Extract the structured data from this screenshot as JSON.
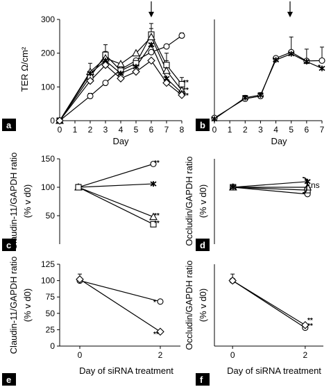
{
  "chart_data": [
    {
      "panel": "a",
      "type": "line",
      "xlabel": "Day",
      "ylabel": "TER Ω/cm²",
      "xlim": [
        0,
        8
      ],
      "ylim": [
        0,
        300
      ],
      "xticks": [
        "0",
        "1",
        "2",
        "3",
        "4",
        "5",
        "6",
        "7",
        "8"
      ],
      "yticks": [
        "0",
        "100",
        "200",
        "300"
      ],
      "arrow_x": 6,
      "series": [
        {
          "marker": "circle",
          "x": [
            0,
            2,
            3,
            4,
            5,
            6,
            7,
            8
          ],
          "y": [
            0,
            73,
            112,
            152,
            178,
            203,
            220,
            252
          ],
          "err": [
            0,
            8,
            0,
            0,
            0,
            0,
            0,
            8
          ]
        },
        {
          "marker": "square",
          "x": [
            0,
            2,
            3,
            4,
            5,
            6,
            7,
            8
          ],
          "y": [
            0,
            130,
            195,
            148,
            170,
            255,
            165,
            108
          ],
          "err": [
            0,
            15,
            30,
            0,
            0,
            18,
            35,
            20
          ]
        },
        {
          "marker": "triangle",
          "x": [
            0,
            2,
            3,
            4,
            5,
            6,
            7,
            8
          ],
          "y": [
            0,
            145,
            185,
            168,
            200,
            248,
            148,
            90
          ],
          "err": [
            0,
            25,
            20,
            0,
            0,
            40,
            30,
            10
          ]
        },
        {
          "marker": "star",
          "x": [
            0,
            2,
            3,
            4,
            5,
            6,
            7,
            8
          ],
          "y": [
            0,
            140,
            178,
            140,
            160,
            225,
            125,
            82
          ],
          "err": [
            0,
            0,
            0,
            0,
            0,
            0,
            0,
            0
          ]
        },
        {
          "marker": "diamond",
          "x": [
            0,
            2,
            3,
            4,
            5,
            6,
            7,
            8
          ],
          "y": [
            0,
            118,
            165,
            125,
            145,
            178,
            112,
            76
          ],
          "err": [
            0,
            0,
            0,
            0,
            0,
            0,
            0,
            0
          ]
        }
      ],
      "annotations": [
        "**",
        "**",
        "**"
      ]
    },
    {
      "panel": "b",
      "type": "line",
      "xlabel": "Day",
      "ylabel": "",
      "xlim": [
        0,
        7
      ],
      "ylim": [
        0,
        300
      ],
      "xticks": [
        "0",
        "1",
        "2",
        "3",
        "4",
        "5",
        "6",
        "7"
      ],
      "yticks": [],
      "arrow_x": 5,
      "series": [
        {
          "marker": "circle",
          "x": [
            0,
            2,
            3,
            4,
            5,
            6,
            7
          ],
          "y": [
            8,
            65,
            73,
            185,
            203,
            177,
            178
          ],
          "err": [
            0,
            10,
            10,
            0,
            45,
            35,
            40
          ]
        },
        {
          "marker": "star",
          "x": [
            0,
            2,
            3,
            4,
            5,
            6,
            7
          ],
          "y": [
            5,
            68,
            76,
            180,
            198,
            175,
            155
          ],
          "err": [
            0,
            0,
            0,
            0,
            0,
            0,
            0
          ]
        }
      ],
      "annotations": [
        "*"
      ]
    },
    {
      "panel": "c",
      "type": "line",
      "xlabel": "",
      "ylabel": "Claudin-11/GAPDH ratio (% v d0)",
      "xlim": [
        -0.5,
        2.5
      ],
      "ylim": [
        0,
        150
      ],
      "xticks": [],
      "yticks": [
        "50",
        "100",
        "150"
      ],
      "series": [
        {
          "marker": "circle",
          "x": [
            0,
            2
          ],
          "y": [
            100,
            141
          ],
          "err": [
            5,
            0
          ]
        },
        {
          "marker": "star",
          "x": [
            0,
            2
          ],
          "y": [
            100,
            106
          ],
          "err": [
            0,
            0
          ]
        },
        {
          "marker": "triangle",
          "x": [
            0,
            2
          ],
          "y": [
            100,
            48
          ],
          "err": [
            0,
            0
          ]
        },
        {
          "marker": "square",
          "x": [
            0,
            2
          ],
          "y": [
            100,
            35
          ],
          "err": [
            0,
            0
          ]
        }
      ],
      "annotations": [
        "**",
        "**",
        "**"
      ]
    },
    {
      "panel": "d",
      "type": "line",
      "xlabel": "",
      "ylabel": "Occludin/GAPDH ratio (% v d0)",
      "xlim": [
        -0.5,
        2.5
      ],
      "ylim": [
        0,
        150
      ],
      "xticks": [],
      "yticks": [],
      "series": [
        {
          "marker": "circle",
          "x": [
            0,
            2
          ],
          "y": [
            100,
            88
          ],
          "err": [
            5,
            0
          ]
        },
        {
          "marker": "square",
          "x": [
            0,
            2
          ],
          "y": [
            100,
            95
          ],
          "err": [
            0,
            0
          ]
        },
        {
          "marker": "triangle",
          "x": [
            0,
            2
          ],
          "y": [
            100,
            100
          ],
          "err": [
            0,
            0
          ]
        },
        {
          "marker": "star",
          "x": [
            0,
            2
          ],
          "y": [
            100,
            110
          ],
          "err": [
            0,
            0
          ]
        }
      ],
      "annotations": [
        "ns"
      ]
    },
    {
      "panel": "e",
      "type": "line",
      "xlabel": "Day of siRNA treatment",
      "ylabel": "Claudin-11/GAPDH ratio (% v d0)",
      "xlim": [
        -0.5,
        2.5
      ],
      "ylim": [
        0,
        125
      ],
      "xticks": [
        "0",
        "2"
      ],
      "yticks": [
        "0",
        "25",
        "50",
        "75",
        "100",
        "125"
      ],
      "series": [
        {
          "marker": "circle",
          "x": [
            0,
            2
          ],
          "y": [
            100,
            68
          ],
          "err": [
            10,
            0
          ]
        },
        {
          "marker": "diamond",
          "x": [
            0,
            2
          ],
          "y": [
            102,
            22
          ],
          "err": [
            0,
            0
          ]
        }
      ],
      "annotations": [
        "*",
        "**"
      ]
    },
    {
      "panel": "f",
      "type": "line",
      "xlabel": "Day of siRNA treatment",
      "ylabel": "Occludin/GAPDH ratio (% v d0)",
      "xlim": [
        -0.5,
        2.5
      ],
      "ylim": [
        0,
        125
      ],
      "xticks": [
        "0",
        "2"
      ],
      "yticks": [],
      "series": [
        {
          "marker": "circle",
          "x": [
            0,
            2
          ],
          "y": [
            100,
            28
          ],
          "err": [
            10,
            4
          ]
        },
        {
          "marker": "diamond",
          "x": [
            0,
            2
          ],
          "y": [
            100,
            32
          ],
          "err": [
            0,
            0
          ]
        }
      ],
      "annotations": [
        "**",
        "**"
      ]
    }
  ]
}
